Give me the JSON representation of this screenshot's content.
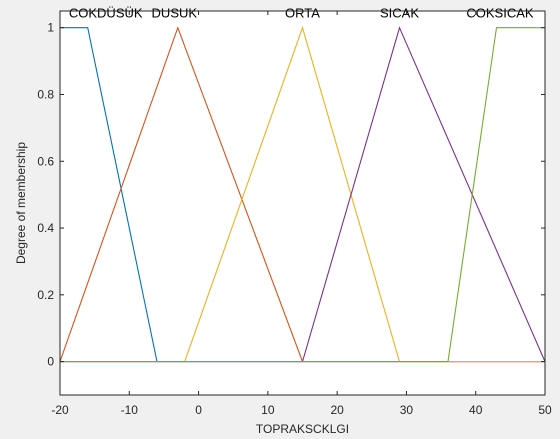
{
  "chart_data": {
    "type": "line",
    "xlabel": "TOPRAKSCKLGI",
    "ylabel": "Degree of membership",
    "xlim": [
      -20,
      50
    ],
    "ylim": [
      -0.1,
      1.05
    ],
    "grid": false,
    "x_ticks": [
      -20,
      -10,
      0,
      10,
      20,
      30,
      40,
      50
    ],
    "x_tick_labels": [
      "-20",
      "-10",
      "0",
      "10",
      "20",
      "30",
      "40",
      "50"
    ],
    "y_ticks": [
      0,
      0.2,
      0.4,
      0.6,
      0.8,
      1
    ],
    "y_tick_labels": [
      "0",
      "0.2",
      "0.4",
      "0.6",
      "0.8",
      "1"
    ],
    "series": [
      {
        "name": "COKDÜSÜK",
        "label_x": -13.4,
        "color": "#0072BD",
        "points": [
          [
            -20,
            1
          ],
          [
            -16,
            1
          ],
          [
            -6,
            0
          ],
          [
            50,
            0
          ]
        ]
      },
      {
        "name": "DUSUK",
        "label_x": -3.5,
        "color": "#D95319",
        "points": [
          [
            -20,
            0
          ],
          [
            -3,
            1
          ],
          [
            15,
            0
          ],
          [
            50,
            0
          ]
        ]
      },
      {
        "name": "ORTA",
        "label_x": 15,
        "color": "#EDB120",
        "points": [
          [
            -20,
            0
          ],
          [
            -2,
            0
          ],
          [
            15,
            1
          ],
          [
            29,
            0
          ],
          [
            50,
            0
          ]
        ]
      },
      {
        "name": "SICAK",
        "label_x": 29,
        "color": "#7E2F8E",
        "points": [
          [
            -20,
            0
          ],
          [
            15,
            0
          ],
          [
            29,
            1
          ],
          [
            50,
            0
          ]
        ]
      },
      {
        "name": "COKSICAK",
        "label_x": 43.5,
        "color": "#77AC30",
        "points": [
          [
            -20,
            0
          ],
          [
            36,
            0
          ],
          [
            43,
            1
          ],
          [
            50,
            1
          ]
        ]
      }
    ]
  }
}
